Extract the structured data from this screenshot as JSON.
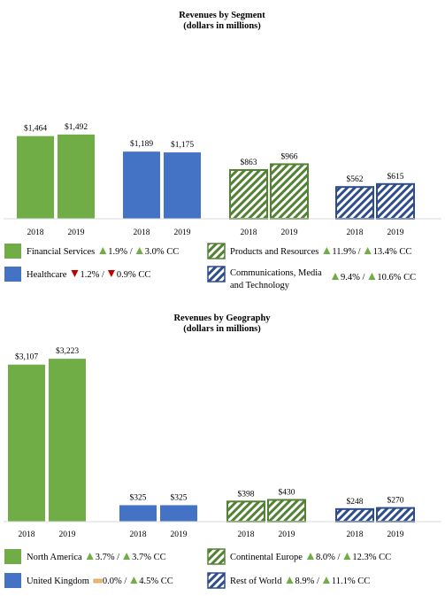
{
  "colors": {
    "green": "#70ad47",
    "blue": "#4472c4",
    "green_hatch": "#548235",
    "blue_hatch": "#2f4d8c",
    "up": "#70ad47",
    "down": "#c00000",
    "flat": "#f4b183"
  },
  "chart_data": [
    {
      "type": "bar",
      "title": "Revenues by Segment",
      "subtitle": "(dollars in millions)",
      "years": [
        "2018",
        "2019"
      ],
      "ylim": [
        0,
        1600
      ],
      "series": [
        {
          "name": "Financial Services",
          "values": [
            1464,
            1492
          ],
          "labels": [
            "$1,464",
            "$1,492"
          ],
          "fill": "solid-green",
          "change": [
            {
              "dir": "up",
              "text": "1.9% /"
            },
            {
              "dir": "up",
              "text": "3.0% CC"
            }
          ]
        },
        {
          "name": "Healthcare",
          "values": [
            1189,
            1175
          ],
          "labels": [
            "$1,189",
            "$1,175"
          ],
          "fill": "solid-blue",
          "change": [
            {
              "dir": "down",
              "text": "1.2% /"
            },
            {
              "dir": "down",
              "text": "0.9% CC"
            }
          ]
        },
        {
          "name": "Products and Resources",
          "values": [
            863,
            966
          ],
          "labels": [
            "$863",
            "$966"
          ],
          "fill": "hatch-green",
          "change": [
            {
              "dir": "up",
              "text": "11.9% /"
            },
            {
              "dir": "up",
              "text": "13.4% CC"
            }
          ]
        },
        {
          "name": "Communications, Media and Technology",
          "name_lines": [
            "Communications, Media",
            "and Technology"
          ],
          "values": [
            562,
            615
          ],
          "labels": [
            "$562",
            "$615"
          ],
          "fill": "hatch-blue",
          "change": [
            {
              "dir": "up",
              "text": "9.4% /"
            },
            {
              "dir": "up",
              "text": "10.6% CC"
            }
          ]
        }
      ]
    },
    {
      "type": "bar",
      "title": "Revenues by Geography",
      "subtitle": "(dollars in millions)",
      "years": [
        "2018",
        "2019"
      ],
      "ylim": [
        0,
        3400
      ],
      "series": [
        {
          "name": "North America",
          "values": [
            3107,
            3223
          ],
          "labels": [
            "$3,107",
            "$3,223"
          ],
          "fill": "solid-green",
          "change": [
            {
              "dir": "up",
              "text": "3.7% /"
            },
            {
              "dir": "up",
              "text": "3.7% CC"
            }
          ]
        },
        {
          "name": "United Kingdom",
          "values": [
            325,
            325
          ],
          "labels": [
            "$325",
            "$325"
          ],
          "fill": "solid-blue",
          "change": [
            {
              "dir": "flat",
              "text": "0.0% /"
            },
            {
              "dir": "up",
              "text": "4.5% CC"
            }
          ]
        },
        {
          "name": "Continental Europe",
          "values": [
            398,
            430
          ],
          "labels": [
            "$398",
            "$430"
          ],
          "fill": "hatch-green",
          "change": [
            {
              "dir": "up",
              "text": "8.0% /"
            },
            {
              "dir": "up",
              "text": "12.3% CC"
            }
          ]
        },
        {
          "name": "Rest of World",
          "values": [
            248,
            270
          ],
          "labels": [
            "$248",
            "$270"
          ],
          "fill": "hatch-blue",
          "change": [
            {
              "dir": "up",
              "text": "8.9% /"
            },
            {
              "dir": "up",
              "text": "11.1% CC"
            }
          ]
        }
      ]
    }
  ]
}
